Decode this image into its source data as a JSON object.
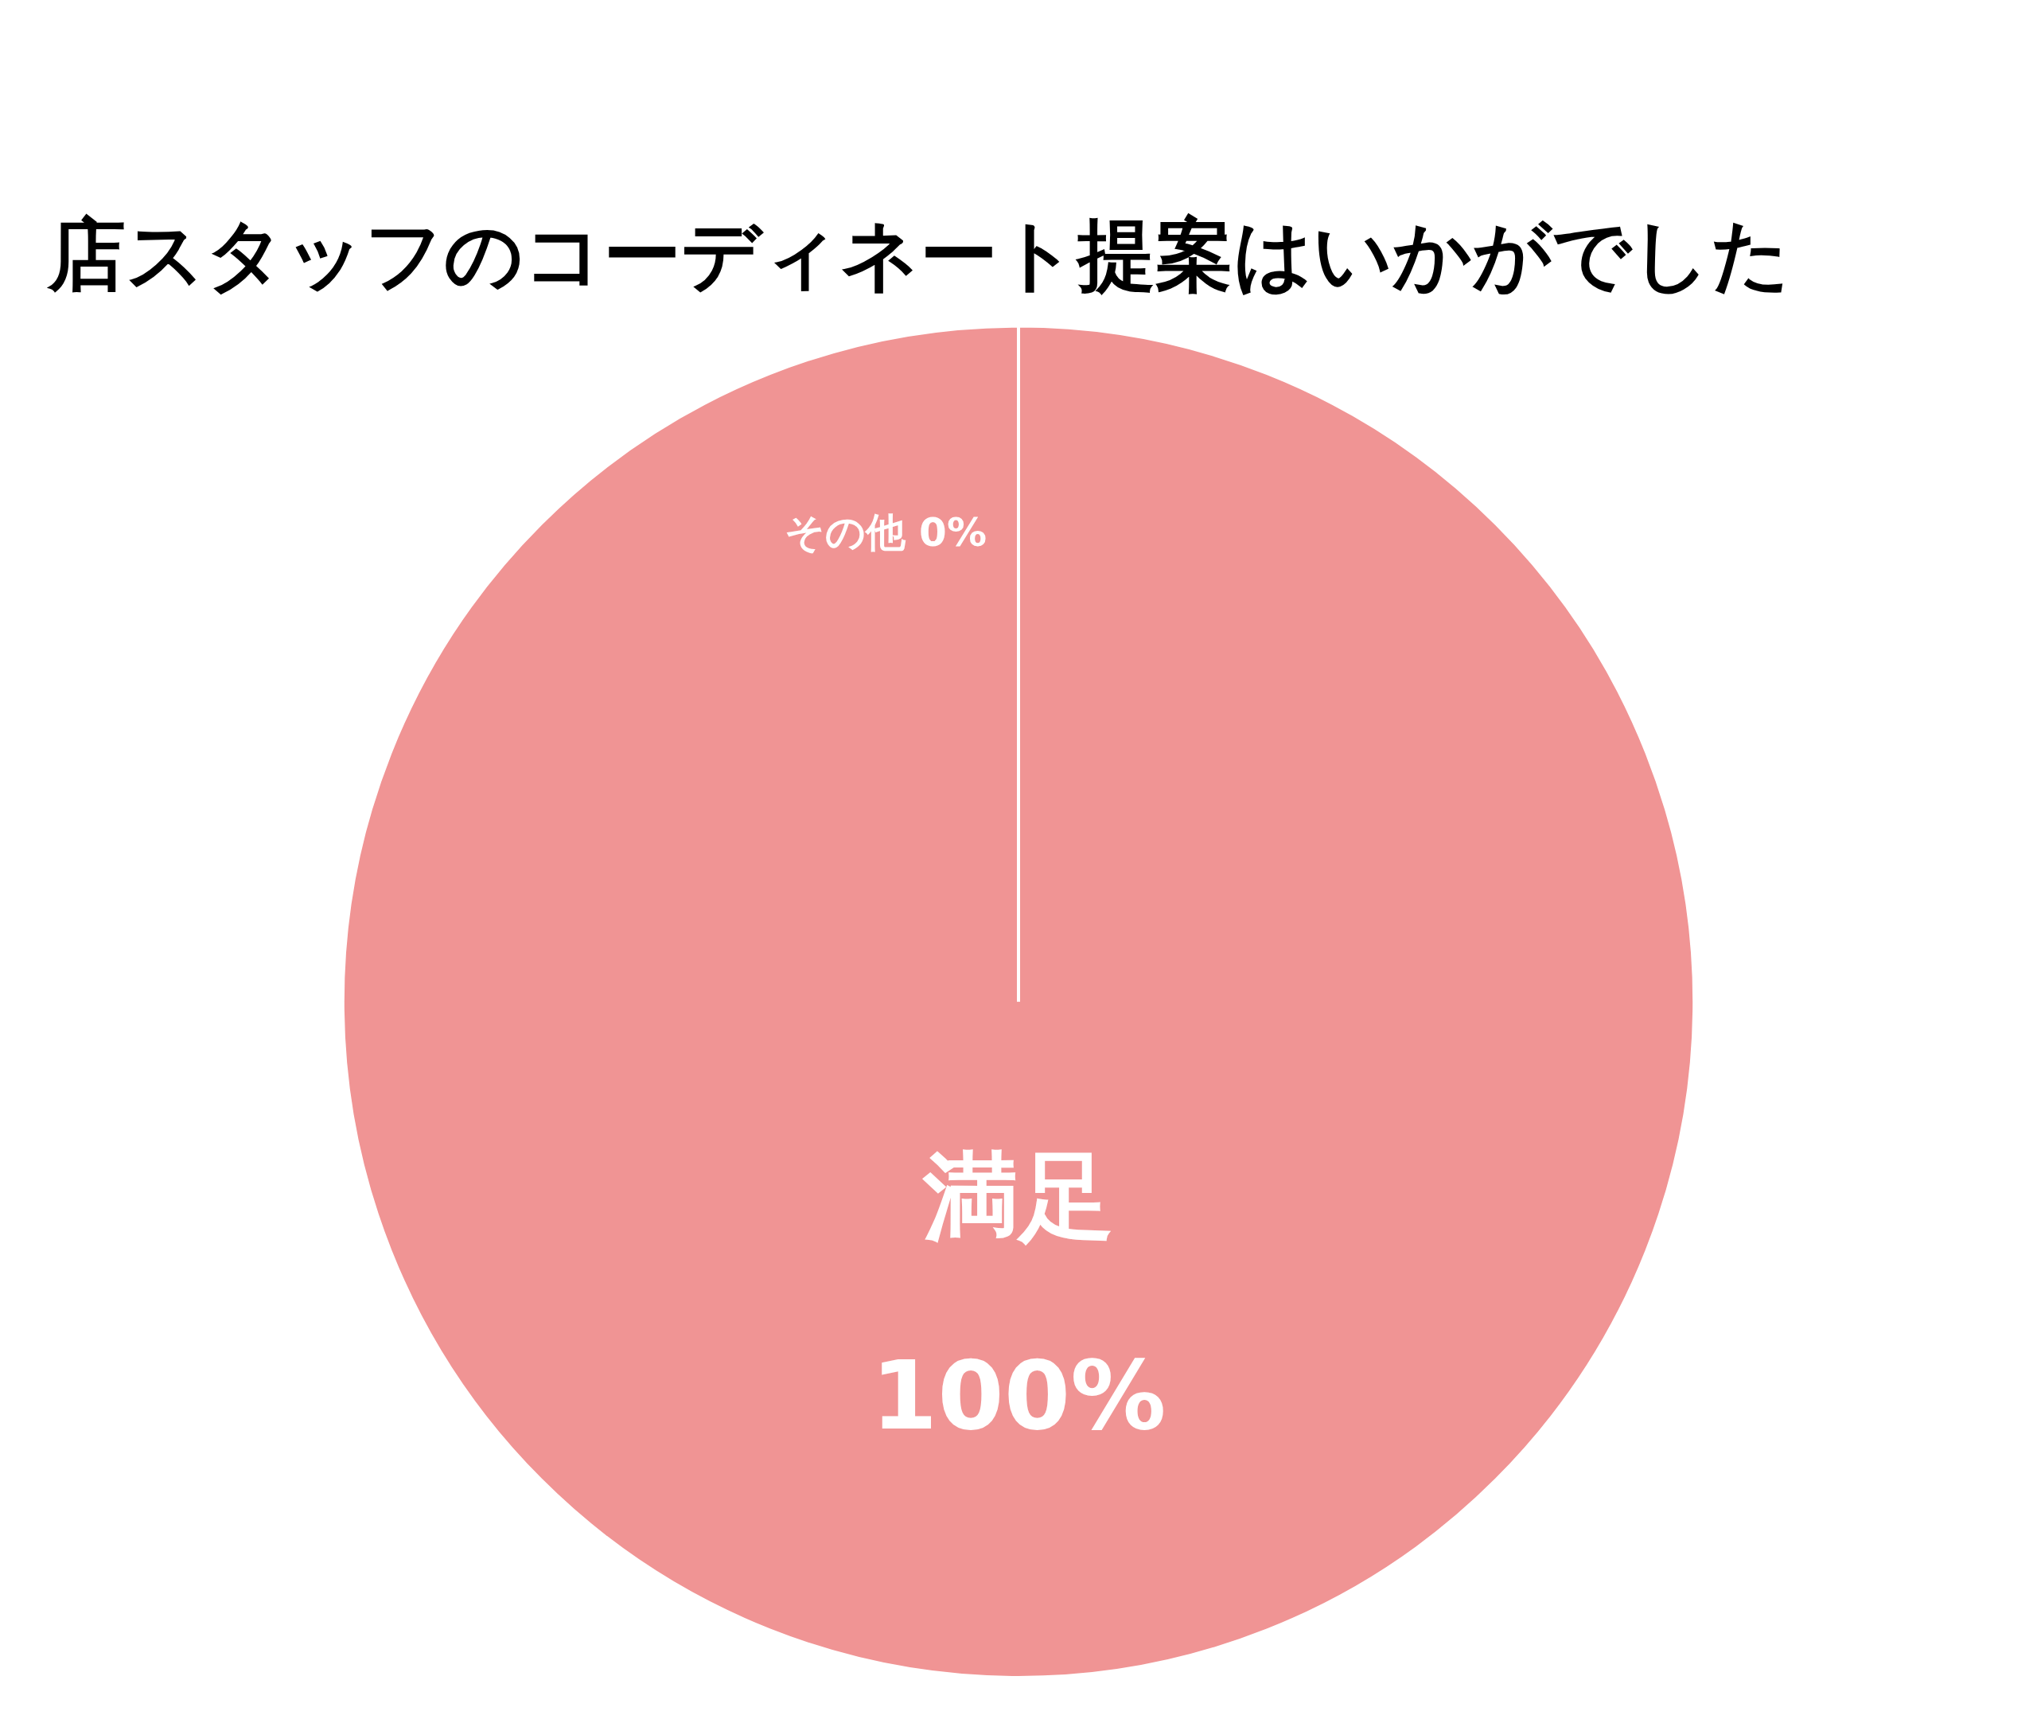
{
  "chart_data": {
    "type": "pie",
    "title": "店スタッフのコーディネート提案はいかがでした",
    "categories": [
      "その他",
      "満足"
    ],
    "values": [
      0,
      100
    ],
    "colors": [
      "#f09494",
      "#f09494"
    ],
    "value_labels": [
      "0%",
      "100%"
    ],
    "legend": false
  }
}
